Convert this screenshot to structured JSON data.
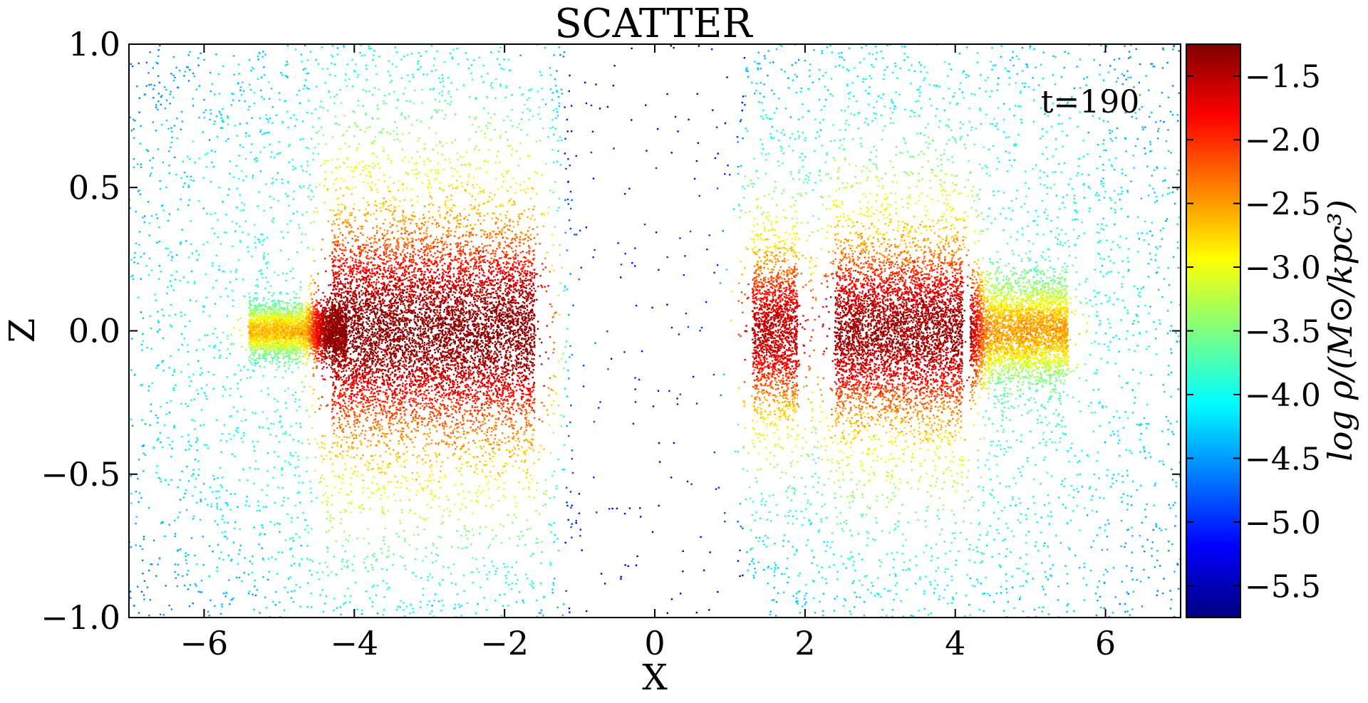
{
  "chart_data": {
    "type": "scatter",
    "title": "SCATTER",
    "xlabel": "X",
    "ylabel": "Z",
    "xlim": [
      -7,
      7
    ],
    "ylim": [
      -1.0,
      1.0
    ],
    "x_ticks": [
      -6,
      -4,
      -2,
      0,
      2,
      4,
      6
    ],
    "y_ticks": [
      -1.0,
      -0.5,
      0.0,
      0.5,
      1.0
    ],
    "x_tick_labels": [
      "−6",
      "−4",
      "−2",
      "0",
      "2",
      "4",
      "6"
    ],
    "y_tick_labels": [
      "−1.0",
      "−0.5",
      "0.0",
      "0.5",
      "1.0"
    ],
    "annotation": "t=190",
    "grid": false,
    "colorbar": {
      "label": "log ρ/(M⊙/kpc³)",
      "range": [
        -5.75,
        -1.25
      ],
      "ticks": [
        -5.5,
        -5.0,
        -4.5,
        -4.0,
        -3.5,
        -3.0,
        -2.5,
        -2.0,
        -1.5
      ],
      "tick_labels": [
        "−5.5",
        "−5.0",
        "−4.5",
        "−4.0",
        "−3.5",
        "−3.0",
        "−2.5",
        "−2.0",
        "−1.5"
      ],
      "colormap": "jet"
    },
    "components": [
      {
        "x_range": [
          -5.4,
          -4.1
        ],
        "z_sigma": 0.03,
        "peak_log_rho": -2.7
      },
      {
        "x_range": [
          -4.3,
          -1.6
        ],
        "z_sigma": 0.13,
        "peak_log_rho": -1.35
      },
      {
        "x_range": [
          1.3,
          1.9
        ],
        "z_sigma": 0.1,
        "peak_log_rho": -1.6
      },
      {
        "x_range": [
          2.4,
          4.1
        ],
        "z_sigma": 0.11,
        "peak_log_rho": -1.45
      },
      {
        "x_range": [
          4.2,
          5.5
        ],
        "z_sigma": 0.06,
        "peak_log_rho": -2.6
      }
    ]
  }
}
